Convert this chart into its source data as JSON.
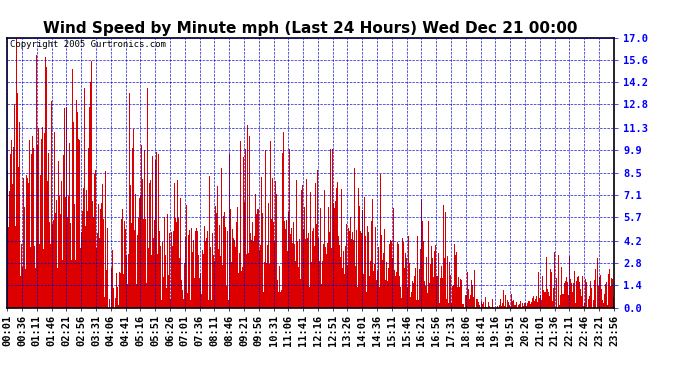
{
  "title": "Wind Speed by Minute mph (Last 24 Hours) Wed Dec 21 00:00",
  "copyright": "Copyright 2005 Gurtronics.com",
  "yticks": [
    0.0,
    1.4,
    2.8,
    4.2,
    5.7,
    7.1,
    8.5,
    9.9,
    11.3,
    12.8,
    14.2,
    15.6,
    17.0
  ],
  "ylim": [
    0.0,
    17.0
  ],
  "bar_color": "#dd0000",
  "bg_color": "#ffffff",
  "grid_color": "#0000cc",
  "title_fontsize": 11,
  "copyright_fontsize": 6.5,
  "tick_label_fontsize": 7.5,
  "xtick_labels": [
    "00:01",
    "00:36",
    "01:11",
    "01:46",
    "02:21",
    "02:56",
    "03:31",
    "04:06",
    "04:41",
    "05:16",
    "05:51",
    "06:26",
    "07:01",
    "07:36",
    "08:11",
    "08:46",
    "09:21",
    "09:56",
    "10:31",
    "11:06",
    "11:41",
    "12:16",
    "12:51",
    "13:26",
    "14:01",
    "14:36",
    "15:11",
    "15:46",
    "16:21",
    "16:56",
    "17:31",
    "18:06",
    "18:41",
    "19:16",
    "19:51",
    "20:26",
    "21:01",
    "21:36",
    "22:11",
    "22:46",
    "23:21",
    "23:56"
  ]
}
